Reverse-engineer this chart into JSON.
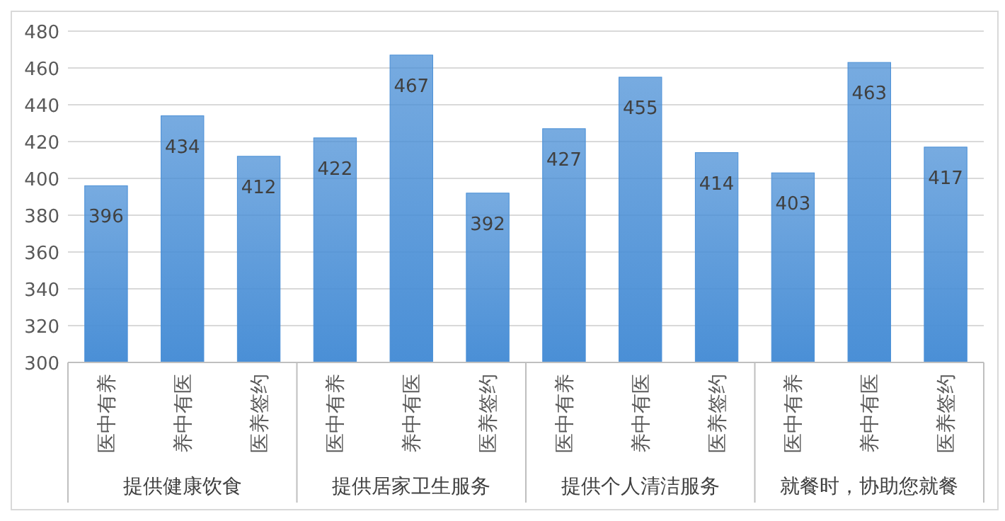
{
  "chart_data": {
    "type": "bar",
    "categories": [
      "医中有养",
      "养中有医",
      "医养签约",
      "医中有养",
      "养中有医",
      "医养签约",
      "医中有养",
      "养中有医",
      "医养签约",
      "医中有养",
      "养中有医",
      "医养签约"
    ],
    "values": [
      396,
      434,
      412,
      422,
      467,
      392,
      427,
      455,
      414,
      403,
      463,
      417
    ],
    "color": "#4a8fd6",
    "ylim": [
      300,
      480
    ],
    "yticks": [
      300,
      320,
      340,
      360,
      380,
      400,
      420,
      440,
      460,
      480
    ],
    "grid": "y",
    "data_labels": true,
    "annotations": [
      "提供健康饮食",
      "提供居家卫生服务",
      "提供个人清洁服务",
      "就餐时，协助您就餐"
    ]
  }
}
